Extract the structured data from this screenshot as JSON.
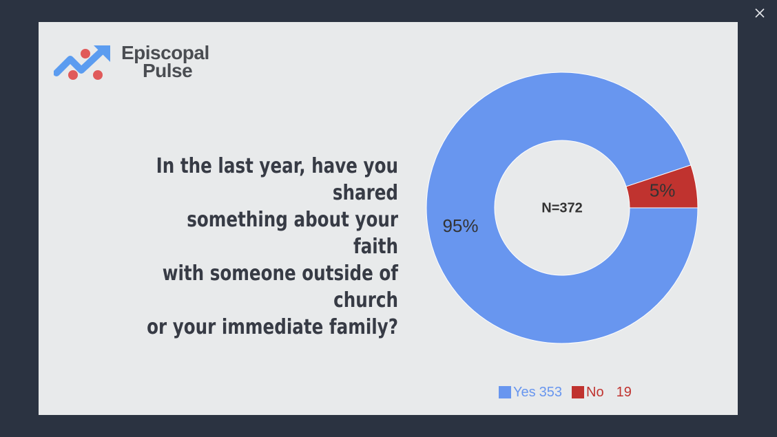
{
  "window": {
    "close_label": "×"
  },
  "logo": {
    "line1": "Episcopal",
    "line2": "Pulse",
    "colors": {
      "arrow": "#5b9cf0",
      "dots": "#e05a5a"
    }
  },
  "question": {
    "lines": [
      "In the last year, have you shared",
      "something about your faith",
      "with someone outside of church",
      "or your immediate family?"
    ]
  },
  "chart_data": {
    "type": "pie",
    "style": "donut",
    "center_label": "N=372",
    "slices": [
      {
        "label": "Yes",
        "value": 353,
        "percent_label": "95%",
        "color": "#6896ef"
      },
      {
        "label": "No",
        "value": 19,
        "percent_label": "5%",
        "color": "#c0332f"
      }
    ],
    "legend": [
      {
        "label": "Yes",
        "value": "353",
        "color": "#6896ef"
      },
      {
        "label": "No",
        "value": "19",
        "color": "#c0332f"
      }
    ],
    "legend_position": "bottom"
  }
}
